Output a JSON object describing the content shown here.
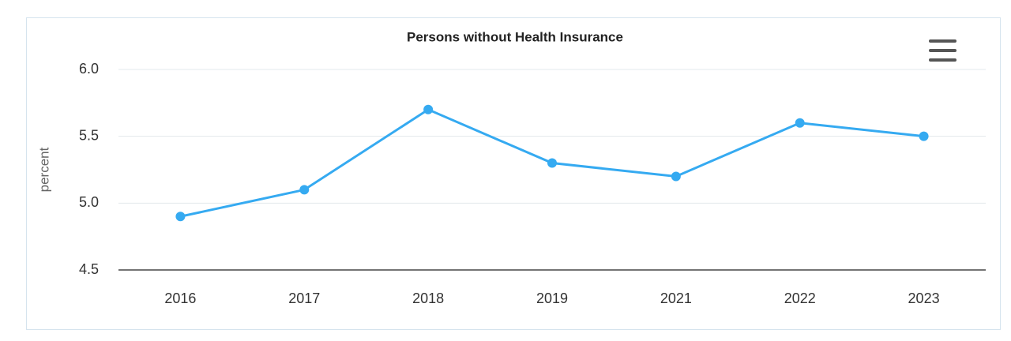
{
  "chart_data": {
    "type": "line",
    "title": "Persons without Health Insurance",
    "y_label": "percent",
    "categories": [
      "2016",
      "2017",
      "2018",
      "2019",
      "2021",
      "2022",
      "2023"
    ],
    "series": [
      {
        "name": "Persons without Health Insurance",
        "color": "#35aaf1",
        "values": [
          4.9,
          5.1,
          5.7,
          5.3,
          5.2,
          5.6,
          5.5
        ]
      }
    ],
    "ylim": [
      4.5,
      6.0
    ],
    "yticks": [
      4.5,
      {
        "value": 5.0,
        "label": "5.0"
      },
      5.5,
      {
        "value": 6.0,
        "label": "6.0"
      }
    ],
    "grid": true
  }
}
